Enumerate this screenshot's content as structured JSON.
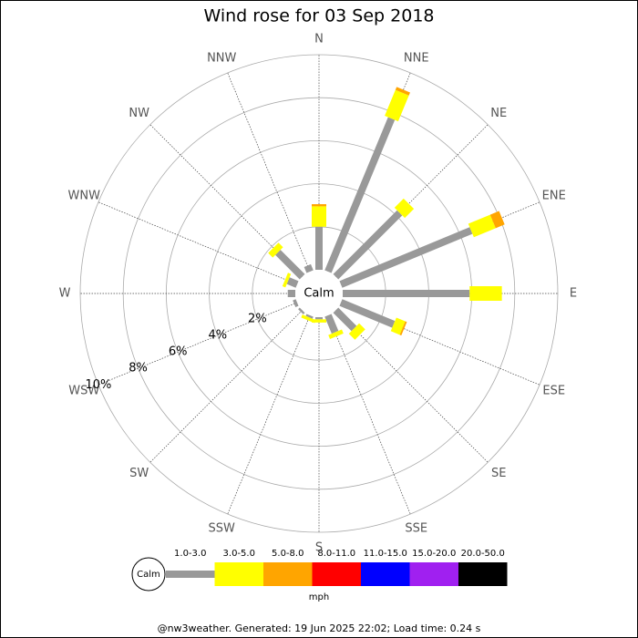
{
  "chart_data": {
    "type": "windrose",
    "title": "Wind rose for 03 Sep 2018",
    "directions": [
      "N",
      "NNE",
      "NE",
      "ENE",
      "E",
      "ESE",
      "SE",
      "SSE",
      "S",
      "SSW",
      "SW",
      "WSW",
      "W",
      "WNW",
      "NW",
      "NNW"
    ],
    "calm_label": "Calm",
    "unit": "mph",
    "ylim": [
      0,
      10
    ],
    "yticks": [
      {
        "value": 2,
        "label": "2%"
      },
      {
        "value": 4,
        "label": "4%"
      },
      {
        "value": 6,
        "label": "6%"
      },
      {
        "value": 8,
        "label": "8%"
      },
      {
        "value": 10,
        "label": "10%"
      }
    ],
    "series": [
      {
        "name": "1.0-3.0",
        "color": "#999999",
        "values": [
          2.0,
          7.7,
          4.2,
          6.55,
          5.9,
          2.65,
          1.2,
          0.85,
          0.1,
          0.1,
          0.1,
          0.15,
          0.35,
          0.45,
          1.6,
          0.3
        ]
      },
      {
        "name": "3.0-5.0",
        "color": "#ffff00",
        "values": [
          0.95,
          1.3,
          0.6,
          1.1,
          1.5,
          0.45,
          0.4,
          0.2,
          0.15,
          0.15,
          0,
          0,
          0,
          0.15,
          0.3,
          0
        ]
      },
      {
        "name": "5.0-8.0",
        "color": "#ffa500",
        "values": [
          0.1,
          0.15,
          0,
          0.45,
          0,
          0.08,
          0,
          0,
          0,
          0,
          0,
          0,
          0,
          0,
          0,
          0
        ]
      },
      {
        "name": "8.0-11.0",
        "color": "#ff0000",
        "values": [
          0,
          0,
          0,
          0,
          0,
          0,
          0,
          0,
          0,
          0,
          0,
          0,
          0,
          0,
          0,
          0
        ]
      },
      {
        "name": "11.0-15.0",
        "color": "#0000ff",
        "values": [
          0,
          0,
          0,
          0,
          0,
          0,
          0,
          0,
          0,
          0,
          0,
          0,
          0,
          0,
          0,
          0
        ]
      },
      {
        "name": "15.0-20.0",
        "color": "#a020f0",
        "values": [
          0,
          0,
          0,
          0,
          0,
          0,
          0,
          0,
          0,
          0,
          0,
          0,
          0,
          0,
          0,
          0
        ]
      },
      {
        "name": "20.0-50.0",
        "color": "#000000",
        "values": [
          0,
          0,
          0,
          0,
          0,
          0,
          0,
          0,
          0,
          0,
          0,
          0,
          0,
          0,
          0,
          0
        ]
      }
    ],
    "footer": "@nw3weather. Generated: 19 Jun 2025 22:02; Load time: 0.24 s"
  }
}
